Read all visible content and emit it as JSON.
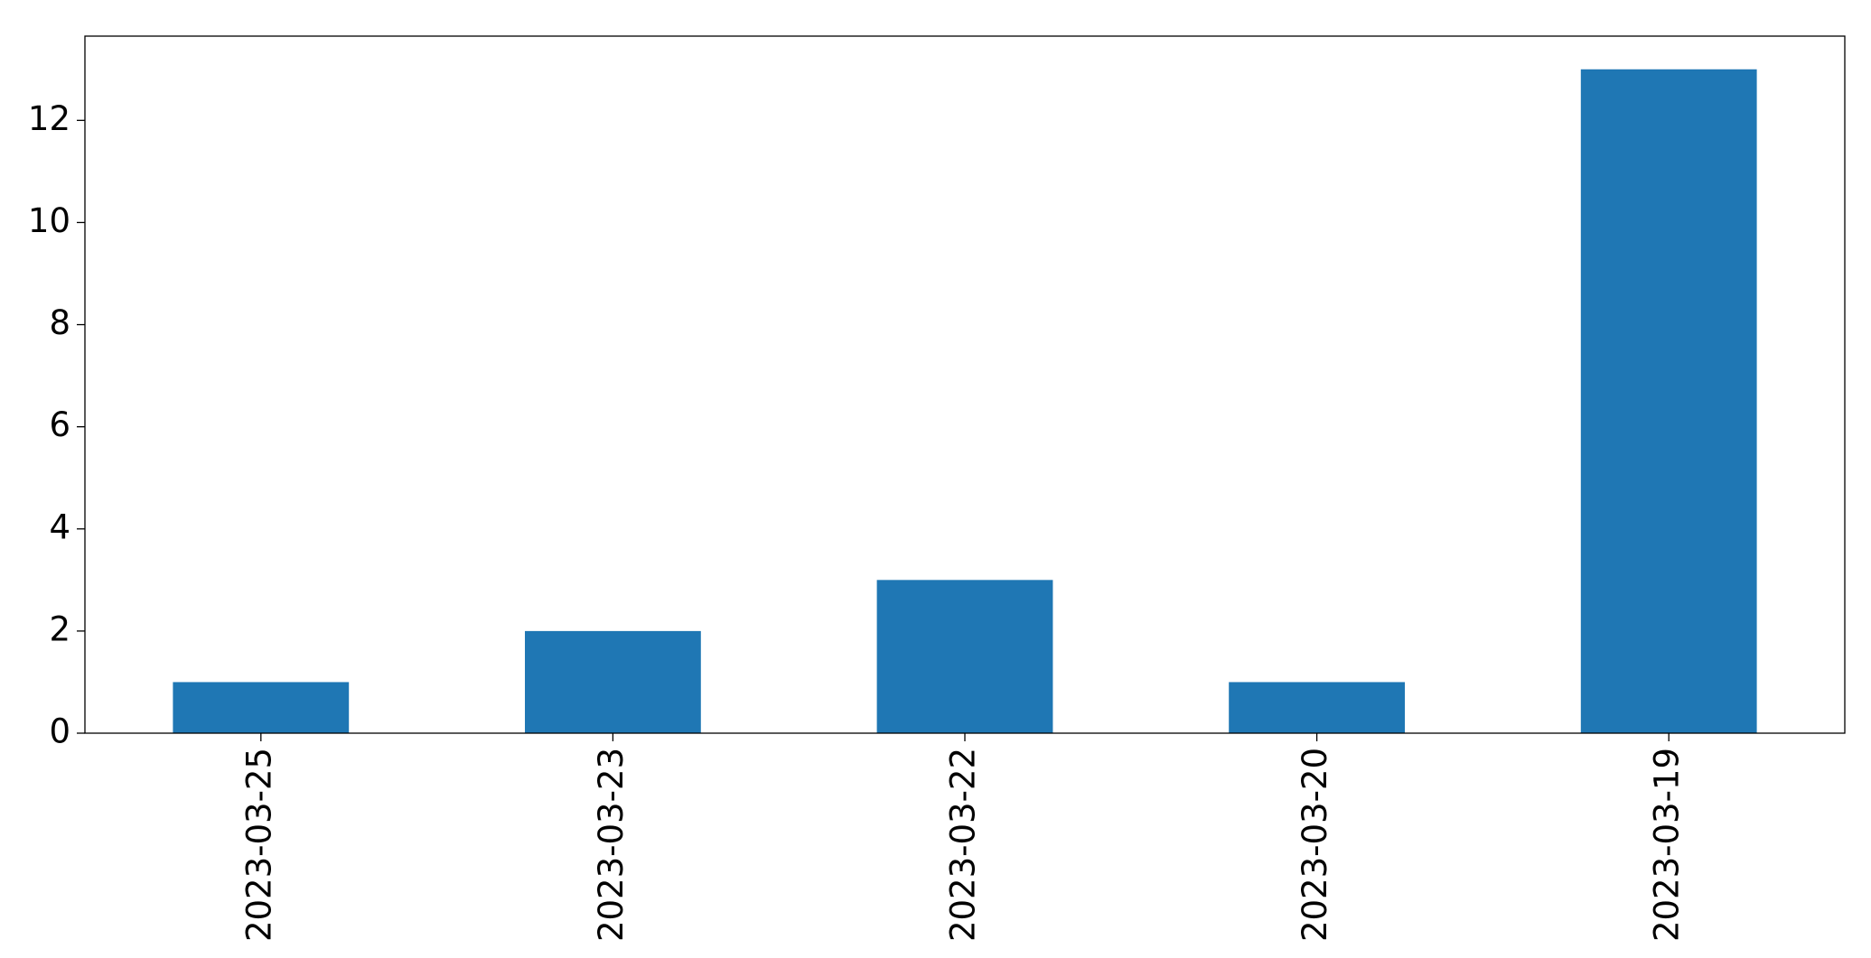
{
  "chart_data": {
    "type": "bar",
    "categories": [
      "2023-03-25",
      "2023-03-23",
      "2023-03-22",
      "2023-03-20",
      "2023-03-19"
    ],
    "values": [
      1,
      2,
      3,
      1,
      13
    ],
    "color": "#1f77b4",
    "ylim": [
      0,
      13.65
    ],
    "yticks": [
      0,
      2,
      4,
      6,
      8,
      10,
      12
    ],
    "grid": false
  }
}
